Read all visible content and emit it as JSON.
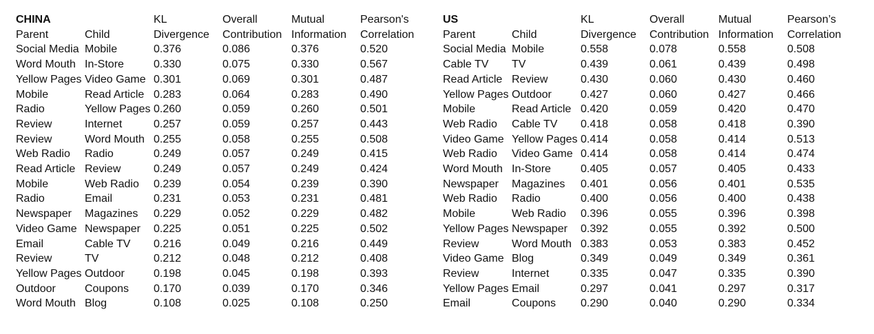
{
  "tables": [
    {
      "title": "CHINA",
      "header_top": [
        "KL",
        "Overall",
        "Mutual",
        "Pearson's"
      ],
      "header_bottom": [
        "Parent",
        "Child",
        "Divergence",
        "Contribution",
        "Information",
        "Correlation"
      ],
      "rows": [
        [
          "Social Media",
          "Mobile",
          "0.376",
          "0.086",
          "0.376",
          "0.520"
        ],
        [
          "Word Mouth",
          "In-Store",
          "0.330",
          "0.075",
          "0.330",
          "0.567"
        ],
        [
          "Yellow Pages",
          "Video Game",
          "0.301",
          "0.069",
          "0.301",
          "0.487"
        ],
        [
          "Mobile",
          "Read Article",
          "0.283",
          "0.064",
          "0.283",
          "0.490"
        ],
        [
          "Radio",
          "Yellow Pages",
          "0.260",
          "0.059",
          "0.260",
          "0.501"
        ],
        [
          "Review",
          "Internet",
          "0.257",
          "0.059",
          "0.257",
          "0.443"
        ],
        [
          "Review",
          "Word Mouth",
          "0.255",
          "0.058",
          "0.255",
          "0.508"
        ],
        [
          "Web Radio",
          "Radio",
          "0.249",
          "0.057",
          "0.249",
          "0.415"
        ],
        [
          "Read Article",
          "Review",
          "0.249",
          "0.057",
          "0.249",
          "0.424"
        ],
        [
          "Mobile",
          "Web Radio",
          "0.239",
          "0.054",
          "0.239",
          "0.390"
        ],
        [
          "Radio",
          "Email",
          "0.231",
          "0.053",
          "0.231",
          "0.481"
        ],
        [
          "Newspaper",
          "Magazines",
          "0.229",
          "0.052",
          "0.229",
          "0.482"
        ],
        [
          "Video Game",
          "Newspaper",
          "0.225",
          "0.051",
          "0.225",
          "0.502"
        ],
        [
          "Email",
          "Cable TV",
          "0.216",
          "0.049",
          "0.216",
          "0.449"
        ],
        [
          "Review",
          "TV",
          "0.212",
          "0.048",
          "0.212",
          "0.408"
        ],
        [
          "Yellow Pages",
          "Outdoor",
          "0.198",
          "0.045",
          "0.198",
          "0.393"
        ],
        [
          "Outdoor",
          "Coupons",
          "0.170",
          "0.039",
          "0.170",
          "0.346"
        ],
        [
          "Word Mouth",
          "Blog",
          "0.108",
          "0.025",
          "0.108",
          "0.250"
        ]
      ]
    },
    {
      "title": "US",
      "header_top": [
        "KL",
        "Overall",
        "Mutual",
        "Pearson’s"
      ],
      "header_bottom": [
        "Parent",
        "Child",
        "Divergence",
        "Contribution",
        "Information",
        "Correlation"
      ],
      "rows": [
        [
          "Social Media",
          "Mobile",
          "0.558",
          "0.078",
          "0.558",
          "0.508"
        ],
        [
          "Cable TV",
          "TV",
          "0.439",
          "0.061",
          "0.439",
          "0.498"
        ],
        [
          "Read Article",
          "Review",
          "0.430",
          "0.060",
          "0.430",
          "0.460"
        ],
        [
          "Yellow Pages",
          "Outdoor",
          "0.427",
          "0.060",
          "0.427",
          "0.466"
        ],
        [
          "Mobile",
          "Read Article",
          "0.420",
          "0.059",
          "0.420",
          "0.470"
        ],
        [
          "Web Radio",
          "Cable TV",
          "0.418",
          "0.058",
          "0.418",
          "0.390"
        ],
        [
          "Video Game",
          "Yellow Pages",
          "0.414",
          "0.058",
          "0.414",
          "0.513"
        ],
        [
          "Web Radio",
          "Video Game",
          "0.414",
          "0.058",
          "0.414",
          "0.474"
        ],
        [
          "Word Mouth",
          "In-Store",
          "0.405",
          "0.057",
          "0.405",
          "0.433"
        ],
        [
          "Newspaper",
          "Magazines",
          "0.401",
          "0.056",
          "0.401",
          "0.535"
        ],
        [
          "Web Radio",
          "Radio",
          "0.400",
          "0.056",
          "0.400",
          "0.438"
        ],
        [
          "Mobile",
          "Web Radio",
          "0.396",
          "0.055",
          "0.396",
          "0.398"
        ],
        [
          "Yellow Pages",
          "Newspaper",
          "0.392",
          "0.055",
          "0.392",
          "0.500"
        ],
        [
          "Review",
          "Word Mouth",
          "0.383",
          "0.053",
          "0.383",
          "0.452"
        ],
        [
          "Video Game",
          "Blog",
          "0.349",
          "0.049",
          "0.349",
          "0.361"
        ],
        [
          "Review",
          "Internet",
          "0.335",
          "0.047",
          "0.335",
          "0.390"
        ],
        [
          "Yellow Pages",
          "Email",
          "0.297",
          "0.041",
          "0.297",
          "0.317"
        ],
        [
          "Email",
          "Coupons",
          "0.290",
          "0.040",
          "0.290",
          "0.334"
        ]
      ]
    }
  ]
}
